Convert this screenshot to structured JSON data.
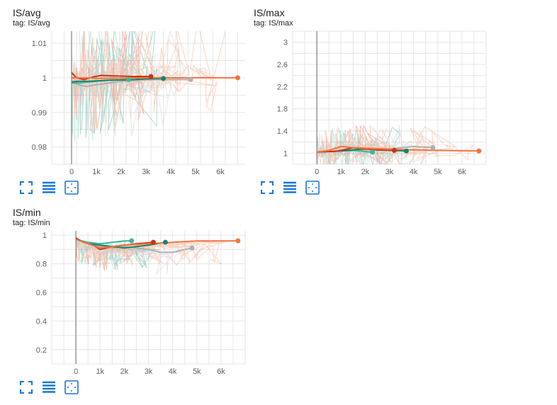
{
  "cards": [
    {
      "title": "IS/avg",
      "tag": "tag: IS/avg"
    },
    {
      "title": "IS/max",
      "tag": "tag: IS/max"
    },
    {
      "title": "IS/min",
      "tag": "tag: IS/min"
    }
  ],
  "toolbar_icons": [
    "fullscreen-icon",
    "data-table-icon",
    "fit-domain-icon"
  ],
  "colors": {
    "orange": "#f7733e",
    "dark_red": "#cc3311",
    "green": "#11866f",
    "teal": "#3fb59a",
    "gray": "#b0b0b0",
    "accent": "#1976d2"
  },
  "chart_data": [
    {
      "type": "line",
      "title": "IS/avg",
      "xlim": [
        -800,
        7000
      ],
      "ylim": [
        0.975,
        1.0135
      ],
      "xticks": [
        0,
        1000,
        2000,
        3000,
        4000,
        5000,
        6000
      ],
      "xtick_labels": [
        "0",
        "1k",
        "2k",
        "3k",
        "4k",
        "5k",
        "6k"
      ],
      "yticks": [
        0.98,
        0.99,
        1.0,
        1.01
      ],
      "ytick_labels": [
        "0.98",
        "0.99",
        "1",
        "1.01"
      ],
      "grid": true,
      "series": [
        {
          "color": "#b0b0b0",
          "x": [
            0,
            300,
            600,
            1000,
            1500,
            2000,
            2500,
            3000,
            3500,
            4000,
            4800
          ],
          "y": [
            0.999,
            0.998,
            0.9975,
            0.998,
            0.9985,
            0.999,
            0.9992,
            0.9994,
            0.9995,
            0.9995,
            0.9995
          ]
        },
        {
          "color": "#3fb59a",
          "x": [
            0,
            300,
            700,
            1000,
            1500,
            2000,
            2300
          ],
          "y": [
            0.9985,
            0.9985,
            0.9988,
            0.999,
            0.9993,
            0.9994,
            0.9995
          ]
        },
        {
          "color": "#11866f",
          "x": [
            0,
            300,
            700,
            1000,
            1500,
            2000,
            2500,
            3000,
            3700
          ],
          "y": [
            0.9988,
            0.999,
            0.999,
            0.9991,
            0.9993,
            0.9994,
            0.9995,
            0.9997,
            0.9998
          ]
        },
        {
          "color": "#cc3311",
          "x": [
            0,
            200,
            500,
            900,
            1200,
            1500,
            2000,
            2500,
            3200
          ],
          "y": [
            1.0015,
            1.0,
            0.9995,
            1.0003,
            1.0007,
            1.0006,
            1.0005,
            1.0004,
            1.0004
          ]
        },
        {
          "color": "#f7733e",
          "x": [
            0,
            300,
            700,
            1000,
            1500,
            2000,
            3000,
            4000,
            5000,
            6700
          ],
          "y": [
            1.0,
            1.0,
            1.0,
            0.9998,
            0.9999,
            0.9999,
            1.0,
            1.0,
            1.0,
            1.0
          ]
        }
      ]
    },
    {
      "type": "line",
      "title": "IS/max",
      "xlim": [
        -1000,
        7000
      ],
      "ylim": [
        0.8,
        3.2
      ],
      "xticks": [
        0,
        1000,
        2000,
        3000,
        4000,
        5000,
        6000
      ],
      "xtick_labels": [
        "0",
        "1k",
        "2k",
        "3k",
        "4k",
        "5k",
        "6k"
      ],
      "yticks": [
        1,
        1.4,
        1.8,
        2.2,
        2.6,
        3
      ],
      "ytick_labels": [
        "1",
        "1.4",
        "1.8",
        "2.2",
        "2.6",
        "3"
      ],
      "grid": true,
      "series": [
        {
          "color": "#b0b0b0",
          "x": [
            0,
            500,
            1000,
            1500,
            2000,
            2500,
            3000,
            3500,
            4000,
            4800
          ],
          "y": [
            1.02,
            1.03,
            1.04,
            1.05,
            1.06,
            1.07,
            1.08,
            1.1,
            1.12,
            1.1
          ]
        },
        {
          "color": "#3fb59a",
          "x": [
            0,
            500,
            1000,
            1500,
            2000,
            2300
          ],
          "y": [
            1.02,
            1.03,
            1.04,
            1.05,
            1.03,
            1.02
          ]
        },
        {
          "color": "#11866f",
          "x": [
            0,
            500,
            1000,
            1500,
            2000,
            2500,
            3000,
            3700
          ],
          "y": [
            1.02,
            1.03,
            1.04,
            1.06,
            1.08,
            1.06,
            1.05,
            1.04
          ]
        },
        {
          "color": "#cc3311",
          "x": [
            0,
            300,
            700,
            1000,
            1500,
            2000,
            2500,
            3200
          ],
          "y": [
            1.02,
            1.03,
            1.03,
            1.05,
            1.1,
            1.08,
            1.06,
            1.05
          ]
        },
        {
          "color": "#f7733e",
          "x": [
            0,
            500,
            1000,
            1500,
            2000,
            3000,
            4000,
            5000,
            6700
          ],
          "y": [
            1.02,
            1.05,
            1.12,
            1.1,
            1.09,
            1.07,
            1.06,
            1.05,
            1.04
          ]
        }
      ]
    },
    {
      "type": "line",
      "title": "IS/min",
      "xlim": [
        -1000,
        7000
      ],
      "ylim": [
        0.1,
        1.03
      ],
      "xticks": [
        0,
        1000,
        2000,
        3000,
        4000,
        5000,
        6000
      ],
      "xtick_labels": [
        "0",
        "1k",
        "2k",
        "3k",
        "4k",
        "5k",
        "6k"
      ],
      "yticks": [
        0.2,
        0.4,
        0.6,
        0.8,
        1
      ],
      "ytick_labels": [
        "0.2",
        "0.4",
        "0.6",
        "0.8",
        "1"
      ],
      "grid": true,
      "series": [
        {
          "color": "#b0b0b0",
          "x": [
            0,
            500,
            1000,
            1500,
            2000,
            2500,
            3000,
            3500,
            4000,
            4800
          ],
          "y": [
            0.97,
            0.94,
            0.92,
            0.91,
            0.92,
            0.91,
            0.9,
            0.88,
            0.88,
            0.91
          ]
        },
        {
          "color": "#3fb59a",
          "x": [
            0,
            500,
            1000,
            1500,
            2000,
            2300
          ],
          "y": [
            0.97,
            0.95,
            0.94,
            0.95,
            0.96,
            0.96
          ]
        },
        {
          "color": "#11866f",
          "x": [
            0,
            500,
            1000,
            1500,
            2000,
            2500,
            3000,
            3700
          ],
          "y": [
            0.97,
            0.94,
            0.93,
            0.92,
            0.91,
            0.92,
            0.93,
            0.95
          ]
        },
        {
          "color": "#cc3311",
          "x": [
            0,
            300,
            700,
            1000,
            1500,
            2000,
            2500,
            3200
          ],
          "y": [
            0.98,
            0.95,
            0.93,
            0.9,
            0.92,
            0.93,
            0.94,
            0.95
          ]
        },
        {
          "color": "#f7733e",
          "x": [
            0,
            500,
            1000,
            1500,
            2000,
            3000,
            4000,
            5000,
            6700
          ],
          "y": [
            0.97,
            0.94,
            0.91,
            0.92,
            0.93,
            0.94,
            0.95,
            0.96,
            0.96
          ]
        }
      ]
    }
  ]
}
